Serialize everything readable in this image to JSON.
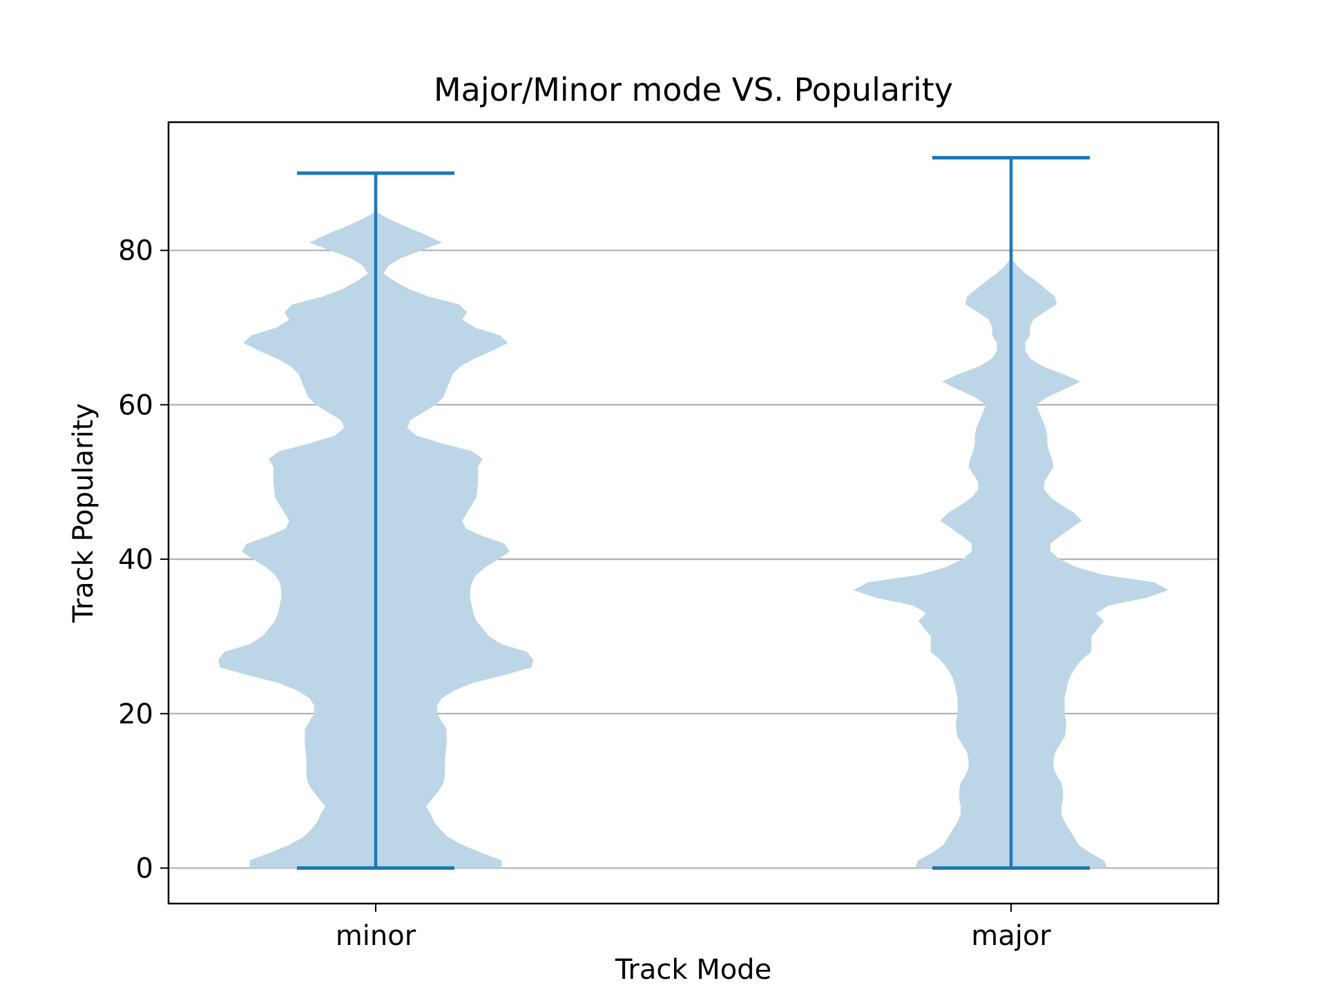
{
  "chart_data": {
    "type": "violin",
    "title": "Major/Minor mode VS. Popularity",
    "xlabel": "Track Mode",
    "ylabel": "Track Popularity",
    "categories": [
      "minor",
      "major"
    ],
    "ylim": [
      -4.6,
      96.6
    ],
    "yticks": [
      0,
      20,
      40,
      60,
      80
    ],
    "grid": "y",
    "colors": {
      "body": "#bcd6e8",
      "lines": "#1f77b4"
    },
    "series": [
      {
        "category": "minor",
        "min": 0,
        "max": 90,
        "density_profile": [
          [
            0,
            0.8
          ],
          [
            1,
            0.8
          ],
          [
            2,
            0.67
          ],
          [
            3,
            0.55
          ],
          [
            4,
            0.46
          ],
          [
            5,
            0.41
          ],
          [
            6,
            0.37
          ],
          [
            7,
            0.35
          ],
          [
            8,
            0.32
          ],
          [
            10,
            0.4
          ],
          [
            11,
            0.43
          ],
          [
            12,
            0.44
          ],
          [
            14,
            0.44
          ],
          [
            16,
            0.45
          ],
          [
            18,
            0.45
          ],
          [
            19,
            0.42
          ],
          [
            20,
            0.39
          ],
          [
            21,
            0.39
          ],
          [
            22,
            0.42
          ],
          [
            23,
            0.5
          ],
          [
            24,
            0.62
          ],
          [
            25,
            0.82
          ],
          [
            26,
            0.99
          ],
          [
            27,
            1.0
          ],
          [
            28,
            0.96
          ],
          [
            29,
            0.8
          ],
          [
            30,
            0.72
          ],
          [
            31,
            0.68
          ],
          [
            32,
            0.64
          ],
          [
            33,
            0.62
          ],
          [
            34,
            0.61
          ],
          [
            35,
            0.6
          ],
          [
            36,
            0.6
          ],
          [
            37,
            0.61
          ],
          [
            38,
            0.64
          ],
          [
            39,
            0.7
          ],
          [
            40,
            0.78
          ],
          [
            41,
            0.85
          ],
          [
            42,
            0.82
          ],
          [
            43,
            0.68
          ],
          [
            44,
            0.57
          ],
          [
            45,
            0.55
          ],
          [
            46,
            0.58
          ],
          [
            47,
            0.61
          ],
          [
            48,
            0.64
          ],
          [
            50,
            0.65
          ],
          [
            52,
            0.65
          ],
          [
            53,
            0.68
          ],
          [
            54,
            0.61
          ],
          [
            55,
            0.42
          ],
          [
            56,
            0.26
          ],
          [
            57,
            0.2
          ],
          [
            58,
            0.22
          ],
          [
            59,
            0.3
          ],
          [
            60,
            0.38
          ],
          [
            61,
            0.43
          ],
          [
            62,
            0.45
          ],
          [
            63,
            0.47
          ],
          [
            64,
            0.49
          ],
          [
            65,
            0.54
          ],
          [
            66,
            0.63
          ],
          [
            67,
            0.74
          ],
          [
            68,
            0.84
          ],
          [
            69,
            0.79
          ],
          [
            70,
            0.63
          ],
          [
            71,
            0.55
          ],
          [
            72,
            0.58
          ],
          [
            73,
            0.53
          ],
          [
            74,
            0.34
          ],
          [
            75,
            0.21
          ],
          [
            76,
            0.12
          ],
          [
            77,
            0.05
          ],
          [
            78,
            0.08
          ],
          [
            79,
            0.16
          ],
          [
            80,
            0.29
          ],
          [
            81,
            0.42
          ],
          [
            82,
            0.32
          ],
          [
            83,
            0.2
          ],
          [
            84,
            0.09
          ],
          [
            85,
            0.0
          ]
        ]
      },
      {
        "category": "major",
        "min": 0,
        "max": 92,
        "density_profile": [
          [
            0,
            0.61
          ],
          [
            1,
            0.59
          ],
          [
            2,
            0.5
          ],
          [
            3,
            0.43
          ],
          [
            4,
            0.4
          ],
          [
            5,
            0.37
          ],
          [
            6,
            0.34
          ],
          [
            7,
            0.32
          ],
          [
            8,
            0.32
          ],
          [
            9,
            0.33
          ],
          [
            10,
            0.33
          ],
          [
            11,
            0.32
          ],
          [
            12,
            0.29
          ],
          [
            13,
            0.27
          ],
          [
            14,
            0.27
          ],
          [
            15,
            0.28
          ],
          [
            16,
            0.31
          ],
          [
            17,
            0.34
          ],
          [
            18,
            0.35
          ],
          [
            19,
            0.35
          ],
          [
            20,
            0.34
          ],
          [
            22,
            0.34
          ],
          [
            23,
            0.35
          ],
          [
            24,
            0.36
          ],
          [
            25,
            0.38
          ],
          [
            26,
            0.41
          ],
          [
            27,
            0.45
          ],
          [
            28,
            0.51
          ],
          [
            29,
            0.51
          ],
          [
            30,
            0.51
          ],
          [
            31,
            0.55
          ],
          [
            32,
            0.59
          ],
          [
            33,
            0.54
          ],
          [
            34,
            0.62
          ],
          [
            35,
            0.86
          ],
          [
            36,
            1.0
          ],
          [
            37,
            0.91
          ],
          [
            38,
            0.58
          ],
          [
            39,
            0.41
          ],
          [
            40,
            0.31
          ],
          [
            41,
            0.25
          ],
          [
            42,
            0.25
          ],
          [
            43,
            0.31
          ],
          [
            44,
            0.38
          ],
          [
            45,
            0.45
          ],
          [
            46,
            0.4
          ],
          [
            47,
            0.32
          ],
          [
            48,
            0.25
          ],
          [
            49,
            0.21
          ],
          [
            50,
            0.21
          ],
          [
            51,
            0.24
          ],
          [
            52,
            0.27
          ],
          [
            53,
            0.26
          ],
          [
            54,
            0.24
          ],
          [
            55,
            0.23
          ],
          [
            56,
            0.23
          ],
          [
            57,
            0.22
          ],
          [
            58,
            0.2
          ],
          [
            59,
            0.18
          ],
          [
            60,
            0.16
          ],
          [
            61,
            0.23
          ],
          [
            62,
            0.34
          ],
          [
            63,
            0.44
          ],
          [
            64,
            0.33
          ],
          [
            65,
            0.2
          ],
          [
            66,
            0.12
          ],
          [
            67,
            0.09
          ],
          [
            68,
            0.09
          ],
          [
            69,
            0.12
          ],
          [
            70,
            0.12
          ],
          [
            71,
            0.14
          ],
          [
            72,
            0.21
          ],
          [
            73,
            0.29
          ],
          [
            74,
            0.28
          ],
          [
            75,
            0.22
          ],
          [
            76,
            0.16
          ],
          [
            77,
            0.09
          ],
          [
            78,
            0.04
          ],
          [
            79,
            0.0
          ]
        ]
      }
    ]
  }
}
